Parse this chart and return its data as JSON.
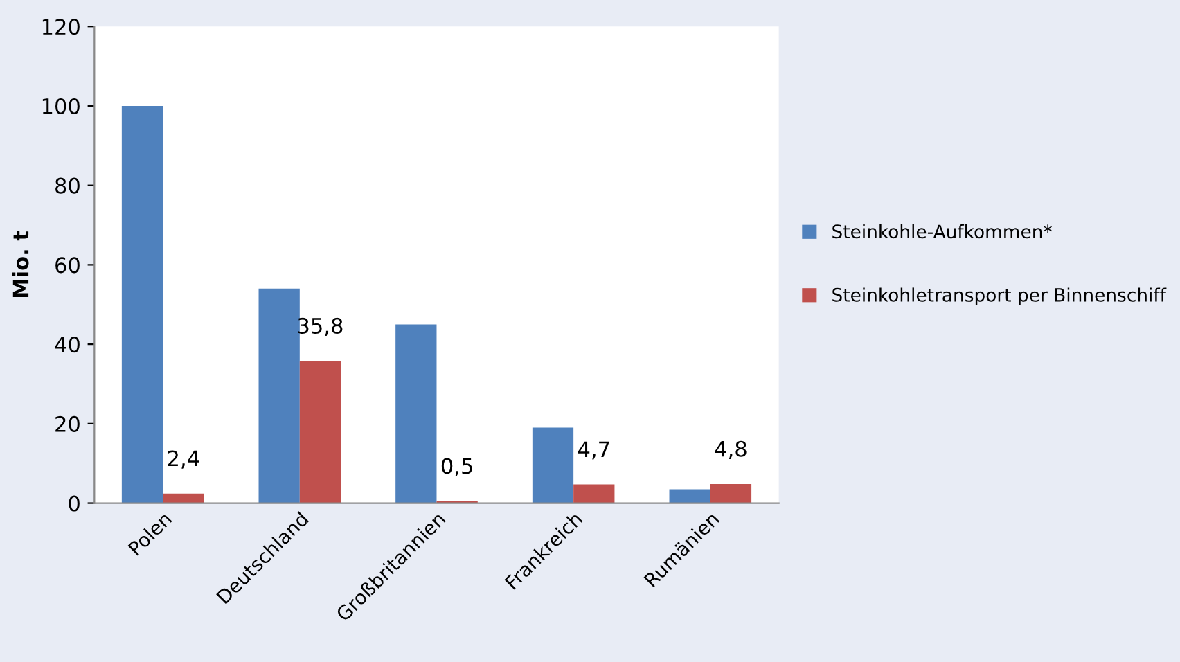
{
  "chart_data": {
    "type": "bar",
    "ylabel": "Mio. t",
    "categories": [
      "Polen",
      "Deutschland",
      "Großbritannien",
      "Frankreich",
      "Rumänien"
    ],
    "series": [
      {
        "name": "Steinkohle-Aufkommen*",
        "color": "#4f81bd",
        "values": [
          100,
          54,
          45,
          19,
          3.5
        ]
      },
      {
        "name": "Steinkohletransport per Binnenschiff",
        "color": "#c0504d",
        "values": [
          2.4,
          35.8,
          0.5,
          4.7,
          4.8
        ],
        "value_labels": [
          "2,4",
          "35,8",
          "0,5",
          "4,7",
          "4,8"
        ]
      }
    ],
    "ylim": [
      0,
      120
    ],
    "yticks": [
      0,
      20,
      40,
      60,
      80,
      100,
      120
    ],
    "grid": false,
    "legend": "right"
  }
}
